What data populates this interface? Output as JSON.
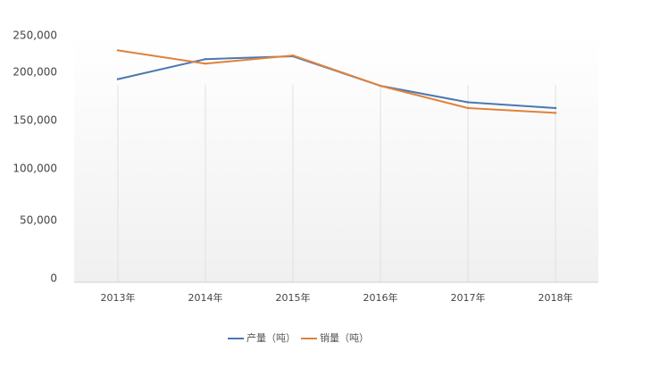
{
  "chart_data": {
    "type": "line",
    "title": "",
    "xlabel": "",
    "ylabel": "",
    "categories": [
      "2013年",
      "2014年",
      "2015年",
      "2016年",
      "2017年",
      "2018年"
    ],
    "yticks": [
      "250,000",
      "200,000",
      "150,000",
      "100,000",
      "50,000",
      "0"
    ],
    "ylim": [
      0,
      250000
    ],
    "grid": "vertical",
    "legend_position": "bottom",
    "series": [
      {
        "name": "产量（吨）",
        "color": "#4a78b0",
        "values": [
          193000,
          218000,
          222000,
          186000,
          169000,
          163000
        ]
      },
      {
        "name": "销量（吨）",
        "color": "#e0823a",
        "values": [
          230000,
          212000,
          223000,
          186000,
          163000,
          158000
        ]
      }
    ]
  }
}
